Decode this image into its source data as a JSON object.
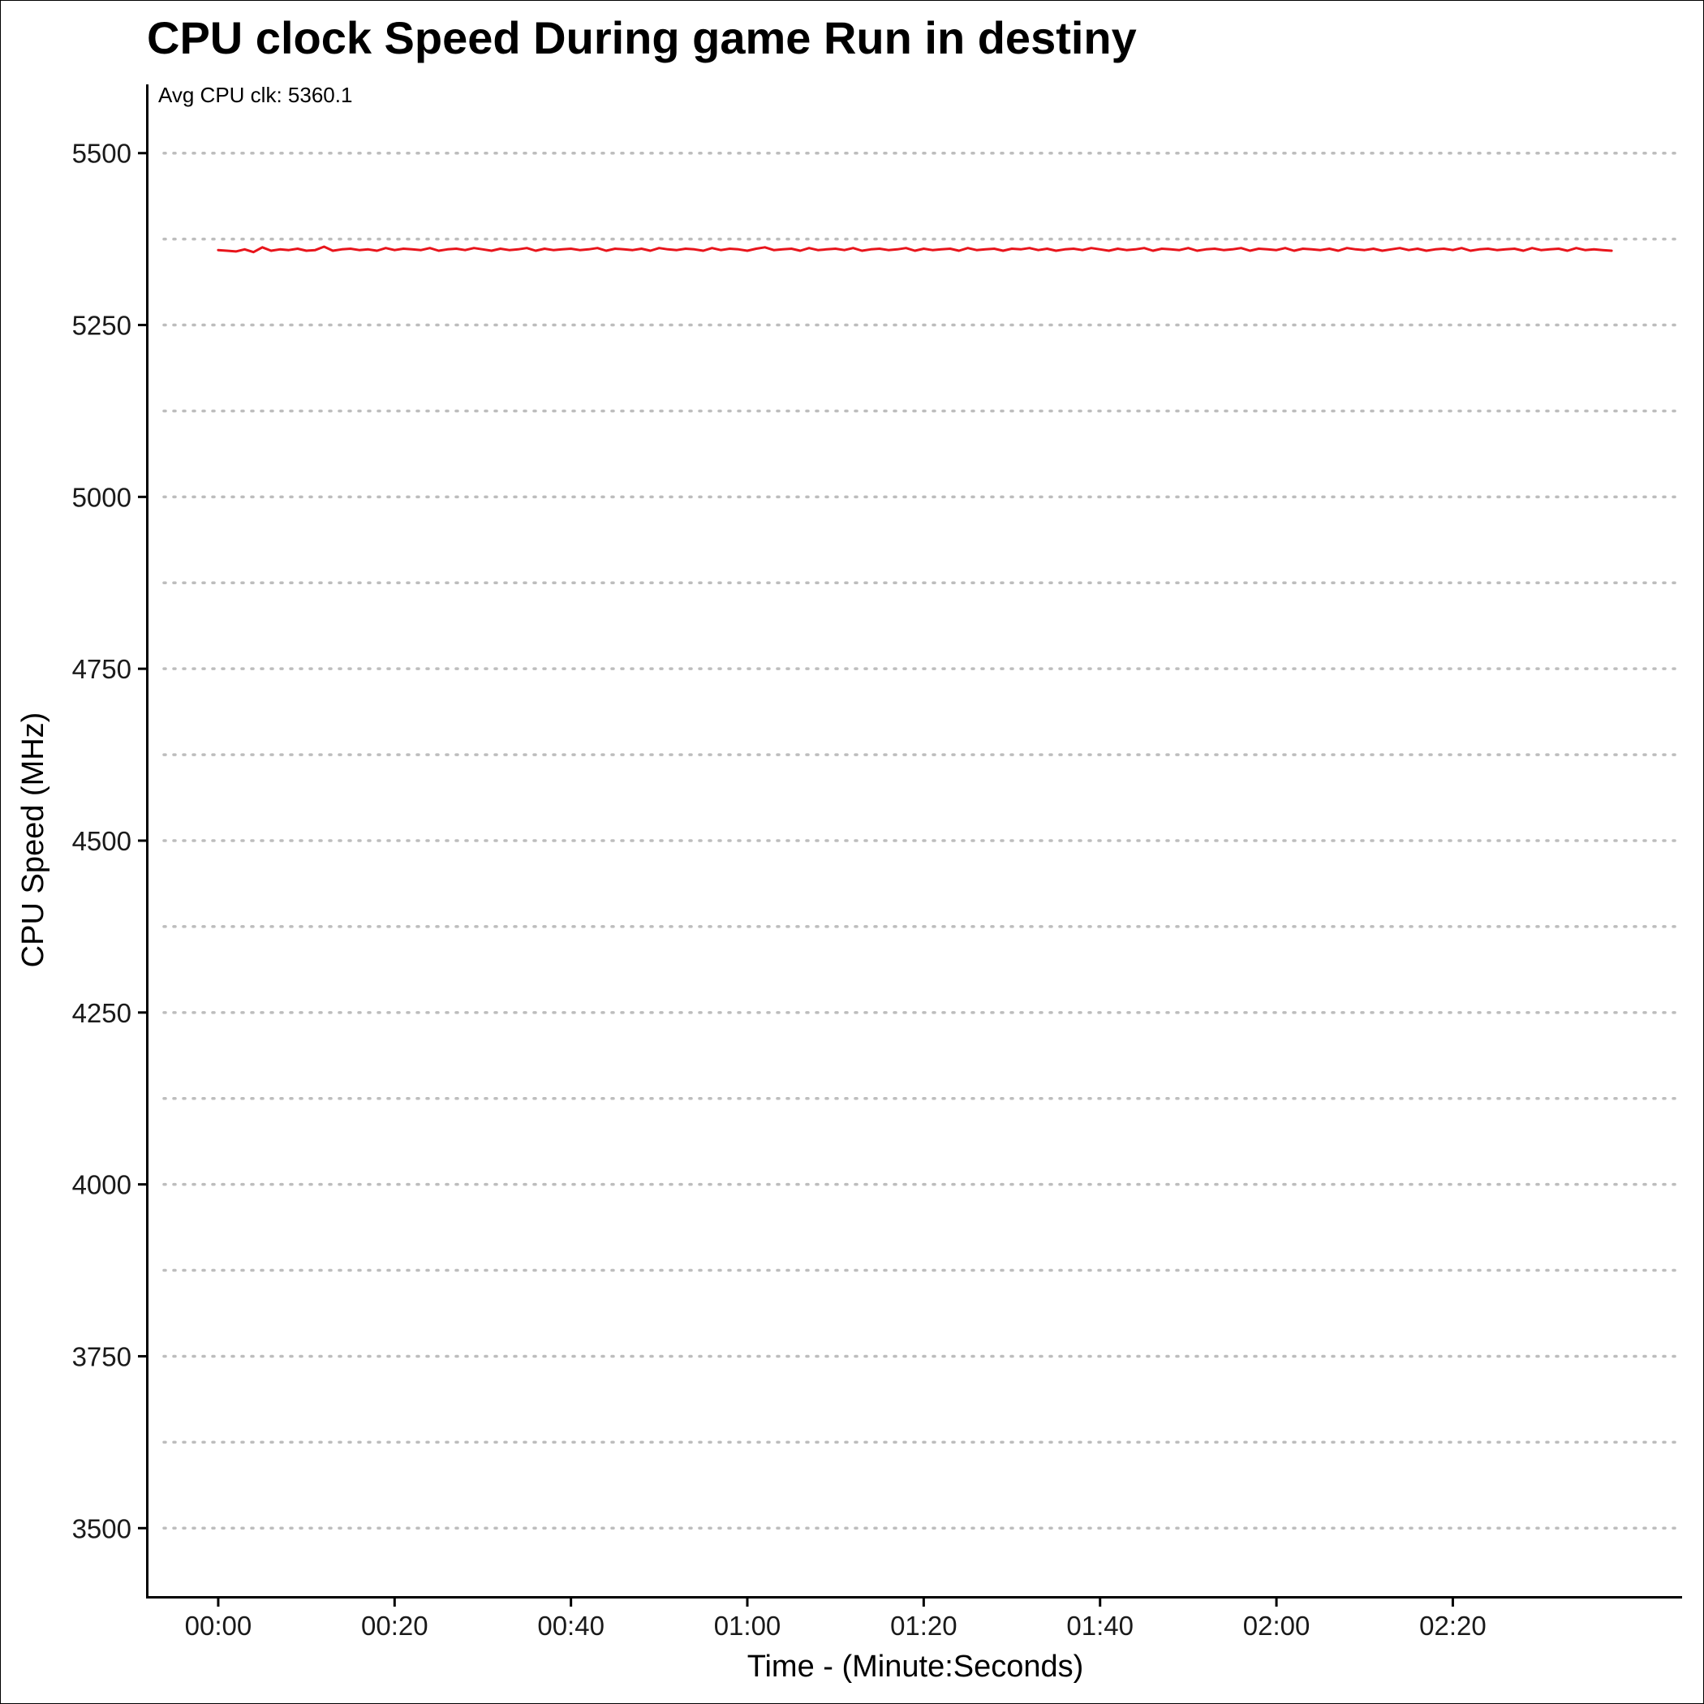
{
  "chart_data": {
    "type": "line",
    "title": "CPU clock Speed During game Run in destiny",
    "annotation": "Avg CPU clk: 5360.1",
    "xlabel": "Time - (Minute:Seconds)",
    "ylabel": "CPU Speed (MHz)",
    "xlim": [
      -8,
      166
    ],
    "ylim": [
      3400,
      5600
    ],
    "x_ticks": [
      0,
      20,
      40,
      60,
      80,
      100,
      120,
      140
    ],
    "x_tick_labels": [
      "00:00",
      "00:20",
      "00:40",
      "01:00",
      "01:20",
      "01:40",
      "02:00",
      "02:20"
    ],
    "y_ticks": [
      3500,
      3750,
      4000,
      4250,
      4500,
      4750,
      5000,
      5250,
      5500
    ],
    "y_tick_labels": [
      "3500",
      "3750",
      "4000",
      "4250",
      "4500",
      "4750",
      "5000",
      "5250",
      "5500"
    ],
    "y_minor_grid": [
      3625,
      3875,
      4125,
      4375,
      4625,
      4875,
      5125,
      5375
    ],
    "grid": "horizontal dotted",
    "series": [
      {
        "color": "#e8141b",
        "x": [
          0,
          1,
          2,
          3,
          4,
          5,
          6,
          7,
          8,
          9,
          10,
          11,
          12,
          13,
          14,
          15,
          16,
          17,
          18,
          19,
          20,
          21,
          22,
          23,
          24,
          25,
          26,
          27,
          28,
          29,
          30,
          31,
          32,
          33,
          34,
          35,
          36,
          37,
          38,
          39,
          40,
          41,
          42,
          43,
          44,
          45,
          46,
          47,
          48,
          49,
          50,
          51,
          52,
          53,
          54,
          55,
          56,
          57,
          58,
          59,
          60,
          61,
          62,
          63,
          64,
          65,
          66,
          67,
          68,
          69,
          70,
          71,
          72,
          73,
          74,
          75,
          76,
          77,
          78,
          79,
          80,
          81,
          82,
          83,
          84,
          85,
          86,
          87,
          88,
          89,
          90,
          91,
          92,
          93,
          94,
          95,
          96,
          97,
          98,
          99,
          100,
          101,
          102,
          103,
          104,
          105,
          106,
          107,
          108,
          109,
          110,
          111,
          112,
          113,
          114,
          115,
          116,
          117,
          118,
          119,
          120,
          121,
          122,
          123,
          124,
          125,
          126,
          127,
          128,
          129,
          130,
          131,
          132,
          133,
          134,
          135,
          136,
          137,
          138,
          139,
          140,
          141,
          142,
          143,
          144,
          145,
          146,
          147,
          148,
          149,
          150,
          151,
          152,
          153,
          154,
          155,
          156,
          157,
          158
        ],
        "y": [
          5359,
          5358,
          5357,
          5360,
          5356,
          5363,
          5358,
          5360,
          5359,
          5361,
          5358,
          5359,
          5364,
          5358,
          5360,
          5361,
          5359,
          5360,
          5358,
          5362,
          5359,
          5361,
          5360,
          5359,
          5362,
          5358,
          5360,
          5361,
          5359,
          5362,
          5360,
          5358,
          5361,
          5359,
          5360,
          5362,
          5358,
          5361,
          5359,
          5360,
          5361,
          5359,
          5360,
          5362,
          5358,
          5361,
          5360,
          5359,
          5361,
          5358,
          5362,
          5360,
          5359,
          5361,
          5360,
          5358,
          5362,
          5359,
          5361,
          5360,
          5358,
          5361,
          5363,
          5359,
          5360,
          5361,
          5358,
          5362,
          5359,
          5360,
          5361,
          5359,
          5362,
          5358,
          5360,
          5361,
          5359,
          5360,
          5362,
          5358,
          5361,
          5359,
          5360,
          5361,
          5358,
          5362,
          5359,
          5360,
          5361,
          5358,
          5361,
          5360,
          5362,
          5359,
          5361,
          5358,
          5360,
          5361,
          5359,
          5362,
          5360,
          5358,
          5361,
          5359,
          5360,
          5362,
          5358,
          5361,
          5360,
          5359,
          5362,
          5358,
          5360,
          5361,
          5359,
          5360,
          5362,
          5358,
          5361,
          5360,
          5359,
          5362,
          5358,
          5361,
          5360,
          5359,
          5361,
          5358,
          5362,
          5360,
          5359,
          5361,
          5358,
          5360,
          5362,
          5359,
          5361,
          5358,
          5360,
          5361,
          5359,
          5362,
          5358,
          5360,
          5361,
          5359,
          5360,
          5361,
          5358,
          5362,
          5359,
          5360,
          5361,
          5358,
          5362,
          5359,
          5360,
          5359,
          5358
        ]
      }
    ]
  }
}
